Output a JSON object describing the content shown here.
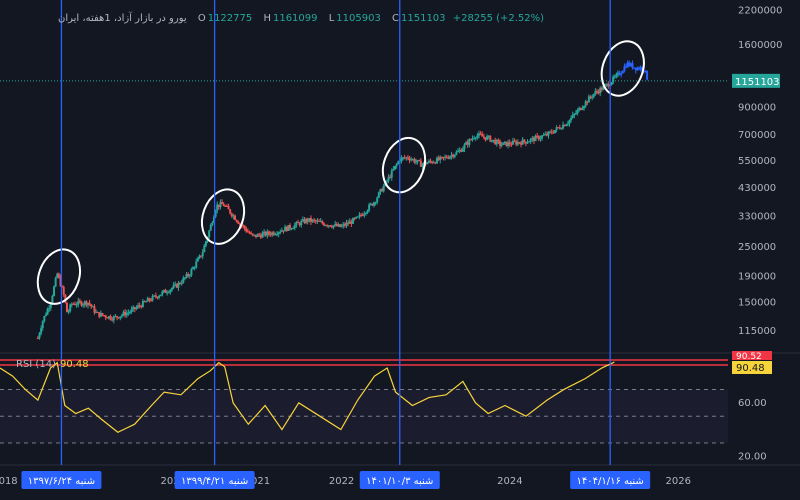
{
  "header": {
    "symbol": "یورو در بازار آزاد، 1هفته، ایران",
    "o_label": "O",
    "o_value": "1122775",
    "h_label": "H",
    "h_value": "1161099",
    "l_label": "L",
    "l_value": "1105903",
    "c_label": "C",
    "c_value": "1151103",
    "change": "+28255 (+2.52%)"
  },
  "colors": {
    "background": "#131722",
    "up": "#26a69a",
    "down": "#ef5350",
    "recent": "#2962ff",
    "rsi_line": "#f7d43a",
    "vertical_lines": "#2962ff",
    "threshold": "#f23645"
  },
  "chart_data": [
    {
      "type": "candlestick",
      "y_scale": "log",
      "ylim": [
        95000,
        2250000
      ],
      "y_ticks": [
        115000,
        150000,
        190000,
        250000,
        330000,
        430000,
        550000,
        700000,
        900000,
        1600000,
        2200000
      ],
      "y_tick_labels": [
        "115000",
        "150000",
        "190000",
        "250000",
        "330000",
        "430000",
        "550000",
        "700000",
        "900000",
        "1600000",
        "2200000"
      ],
      "last_price": 1151103,
      "last_price_label": "1151103",
      "x_tick_labels": [
        "2018",
        "2020",
        "2021",
        "2022",
        "2024",
        "2026"
      ],
      "x_ticks": [
        2018,
        2020,
        2021,
        2022,
        2024,
        2026
      ],
      "xlim": [
        2017.95,
        2026.6
      ],
      "close_path": [
        [
          2018.4,
          108000
        ],
        [
          2018.45,
          125000
        ],
        [
          2018.55,
          150000
        ],
        [
          2018.63,
          195000
        ],
        [
          2018.7,
          165000
        ],
        [
          2018.75,
          135000
        ],
        [
          2018.8,
          148000
        ],
        [
          2019.0,
          150000
        ],
        [
          2019.1,
          135000
        ],
        [
          2019.3,
          130000
        ],
        [
          2019.5,
          138000
        ],
        [
          2019.7,
          152000
        ],
        [
          2019.9,
          165000
        ],
        [
          2020.05,
          175000
        ],
        [
          2020.2,
          195000
        ],
        [
          2020.35,
          235000
        ],
        [
          2020.45,
          300000
        ],
        [
          2020.52,
          365000
        ],
        [
          2020.6,
          370000
        ],
        [
          2020.7,
          340000
        ],
        [
          2020.8,
          310000
        ],
        [
          2020.95,
          275000
        ],
        [
          2021.2,
          285000
        ],
        [
          2021.4,
          300000
        ],
        [
          2021.6,
          320000
        ],
        [
          2021.8,
          310000
        ],
        [
          2022.0,
          300000
        ],
        [
          2022.2,
          325000
        ],
        [
          2022.4,
          380000
        ],
        [
          2022.55,
          460000
        ],
        [
          2022.7,
          560000
        ],
        [
          2022.8,
          570000
        ],
        [
          2022.95,
          535000
        ],
        [
          2023.2,
          560000
        ],
        [
          2023.4,
          600000
        ],
        [
          2023.6,
          700000
        ],
        [
          2023.75,
          680000
        ],
        [
          2023.9,
          640000
        ],
        [
          2024.2,
          660000
        ],
        [
          2024.45,
          700000
        ],
        [
          2024.7,
          790000
        ],
        [
          2024.85,
          900000
        ],
        [
          2025.0,
          1020000
        ],
        [
          2025.15,
          1100000
        ],
        [
          2025.3,
          1220000
        ],
        [
          2025.4,
          1350000
        ],
        [
          2025.5,
          1300000
        ],
        [
          2025.6,
          1290000
        ],
        [
          2025.65,
          1151103
        ]
      ],
      "recent_from": 2025.0,
      "circled_periods": [
        {
          "x": 2018.65,
          "y": 190000
        },
        {
          "x": 2020.6,
          "y": 330000
        },
        {
          "x": 2022.75,
          "y": 530000
        },
        {
          "x": 2025.35,
          "y": 1290000
        }
      ]
    },
    {
      "type": "line",
      "title": "RSI (14)",
      "current_value": 90.48,
      "current_label": "90.48",
      "upper_label": "90.52",
      "upper_value": 90.52,
      "ylim": [
        15,
        95
      ],
      "y_tick_labels": [
        "60.00",
        "20.00"
      ],
      "y_ticks": [
        60,
        20
      ],
      "band_levels": [
        70,
        50,
        30
      ],
      "values_path": [
        [
          2017.95,
          86
        ],
        [
          2018.1,
          80
        ],
        [
          2018.25,
          70
        ],
        [
          2018.4,
          62
        ],
        [
          2018.55,
          86
        ],
        [
          2018.63,
          90
        ],
        [
          2018.72,
          58
        ],
        [
          2018.85,
          52
        ],
        [
          2019.0,
          56
        ],
        [
          2019.15,
          48
        ],
        [
          2019.35,
          38
        ],
        [
          2019.55,
          44
        ],
        [
          2019.75,
          58
        ],
        [
          2019.9,
          68
        ],
        [
          2020.1,
          66
        ],
        [
          2020.3,
          78
        ],
        [
          2020.45,
          84
        ],
        [
          2020.55,
          90
        ],
        [
          2020.62,
          87
        ],
        [
          2020.72,
          60
        ],
        [
          2020.9,
          44
        ],
        [
          2021.1,
          58
        ],
        [
          2021.3,
          40
        ],
        [
          2021.5,
          60
        ],
        [
          2021.75,
          50
        ],
        [
          2022.0,
          40
        ],
        [
          2022.2,
          62
        ],
        [
          2022.4,
          80
        ],
        [
          2022.55,
          86
        ],
        [
          2022.65,
          68
        ],
        [
          2022.85,
          58
        ],
        [
          2023.05,
          64
        ],
        [
          2023.25,
          66
        ],
        [
          2023.45,
          76
        ],
        [
          2023.6,
          60
        ],
        [
          2023.75,
          52
        ],
        [
          2023.95,
          58
        ],
        [
          2024.2,
          50
        ],
        [
          2024.45,
          62
        ],
        [
          2024.65,
          70
        ],
        [
          2024.9,
          78
        ],
        [
          2025.1,
          86
        ],
        [
          2025.25,
          90.48
        ]
      ],
      "date_labels": [
        {
          "x": 2018.68,
          "text": "شنبه ۱۳۹۷/۶/۲۴"
        },
        {
          "x": 2020.5,
          "text": "شنبه ۱۳۹۹/۴/۲۱"
        },
        {
          "x": 2022.7,
          "text": "شنبه ۱۴۰۱/۱۰/۳"
        },
        {
          "x": 2025.2,
          "text": "شنبه ۱۴۰۴/۱/۱۶"
        }
      ],
      "vertical_line_dates": [
        2018.68,
        2020.5,
        2022.7,
        2025.2
      ]
    }
  ]
}
